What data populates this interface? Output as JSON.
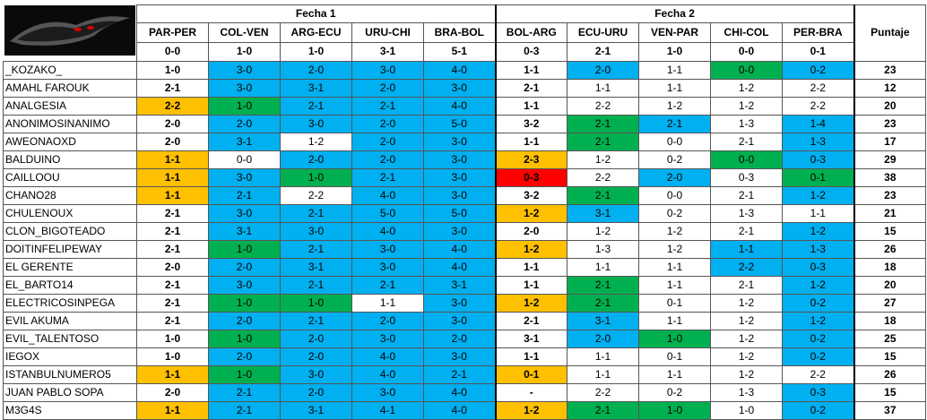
{
  "header": {
    "groups": [
      "Fecha 1",
      "Fecha 2"
    ],
    "score_label": "Puntaje",
    "matches": [
      "PAR-PER",
      "COL-VEN",
      "ARG-ECU",
      "URU-CHI",
      "BRA-BOL",
      "BOL-ARG",
      "ECU-URU",
      "VEN-PAR",
      "CHI-COL",
      "PER-BRA"
    ],
    "results": [
      "0-0",
      "1-0",
      "1-0",
      "3-1",
      "5-1",
      "0-3",
      "2-1",
      "1-0",
      "0-0",
      "0-1"
    ]
  },
  "palette": {
    "w": "#ffffff",
    "b": "#00b0f0",
    "g": "#00b050",
    "o": "#ffc000",
    "r": "#ff0000"
  },
  "rows": [
    {
      "name": "_KOZAKO_",
      "picks": [
        "1-0",
        "3-0",
        "2-0",
        "3-0",
        "4-0",
        "1-1",
        "2-0",
        "1-1",
        "0-0",
        "0-2"
      ],
      "fills": [
        "w",
        "b",
        "b",
        "b",
        "b",
        "w",
        "b",
        "w",
        "g",
        "b"
      ],
      "score": 23
    },
    {
      "name": "AMAHL FAROUK",
      "picks": [
        "2-1",
        "3-0",
        "3-1",
        "2-0",
        "3-0",
        "2-1",
        "1-1",
        "1-1",
        "1-2",
        "2-2"
      ],
      "fills": [
        "w",
        "b",
        "b",
        "b",
        "b",
        "w",
        "w",
        "w",
        "w",
        "w"
      ],
      "score": 12
    },
    {
      "name": "ANALGESIA",
      "picks": [
        "2-2",
        "1-0",
        "2-1",
        "2-1",
        "4-0",
        "1-1",
        "2-2",
        "1-2",
        "1-2",
        "2-2"
      ],
      "fills": [
        "o",
        "g",
        "b",
        "b",
        "b",
        "w",
        "w",
        "w",
        "w",
        "w"
      ],
      "score": 20
    },
    {
      "name": "ANONIMOSINANIMO",
      "picks": [
        "2-0",
        "2-0",
        "3-0",
        "2-0",
        "5-0",
        "3-2",
        "2-1",
        "2-1",
        "1-3",
        "1-4"
      ],
      "fills": [
        "w",
        "b",
        "b",
        "b",
        "b",
        "w",
        "g",
        "b",
        "w",
        "b"
      ],
      "score": 23
    },
    {
      "name": "AWEONAOXD",
      "picks": [
        "2-0",
        "3-1",
        "1-2",
        "2-0",
        "3-0",
        "1-1",
        "2-1",
        "0-0",
        "2-1",
        "1-3"
      ],
      "fills": [
        "w",
        "b",
        "w",
        "b",
        "b",
        "w",
        "g",
        "w",
        "w",
        "b"
      ],
      "score": 17
    },
    {
      "name": "BALDUINO",
      "picks": [
        "1-1",
        "0-0",
        "2-0",
        "2-0",
        "3-0",
        "2-3",
        "1-2",
        "0-2",
        "0-0",
        "0-3"
      ],
      "fills": [
        "o",
        "w",
        "b",
        "b",
        "b",
        "o",
        "w",
        "w",
        "g",
        "b"
      ],
      "score": 29
    },
    {
      "name": "CAILLOOU",
      "picks": [
        "1-1",
        "3-0",
        "1-0",
        "2-1",
        "3-0",
        "0-3",
        "2-2",
        "2-0",
        "0-3",
        "0-1"
      ],
      "fills": [
        "o",
        "b",
        "g",
        "b",
        "b",
        "r",
        "w",
        "b",
        "w",
        "g"
      ],
      "score": 38
    },
    {
      "name": "CHANO28",
      "picks": [
        "1-1",
        "2-1",
        "2-2",
        "4-0",
        "3-0",
        "3-2",
        "2-1",
        "0-0",
        "2-1",
        "1-2"
      ],
      "fills": [
        "o",
        "b",
        "w",
        "b",
        "b",
        "w",
        "g",
        "w",
        "w",
        "b"
      ],
      "score": 23
    },
    {
      "name": "CHULENOUX",
      "picks": [
        "2-1",
        "3-0",
        "2-1",
        "5-0",
        "5-0",
        "1-2",
        "3-1",
        "0-2",
        "1-3",
        "1-1"
      ],
      "fills": [
        "w",
        "b",
        "b",
        "b",
        "b",
        "o",
        "b",
        "w",
        "w",
        "w"
      ],
      "score": 21
    },
    {
      "name": "CLON_BIGOTEADO",
      "picks": [
        "2-1",
        "3-1",
        "3-0",
        "4-0",
        "3-0",
        "2-0",
        "1-2",
        "1-2",
        "2-1",
        "1-2"
      ],
      "fills": [
        "w",
        "b",
        "b",
        "b",
        "b",
        "w",
        "w",
        "w",
        "w",
        "b"
      ],
      "score": 15
    },
    {
      "name": "DOITINFELIPEWAY",
      "picks": [
        "2-1",
        "1-0",
        "2-1",
        "3-0",
        "4-0",
        "1-2",
        "1-3",
        "1-2",
        "1-1",
        "1-3"
      ],
      "fills": [
        "w",
        "g",
        "b",
        "b",
        "b",
        "o",
        "w",
        "w",
        "b",
        "b"
      ],
      "score": 26
    },
    {
      "name": "EL GERENTE",
      "picks": [
        "2-0",
        "2-0",
        "3-1",
        "3-0",
        "4-0",
        "1-1",
        "1-1",
        "1-1",
        "2-2",
        "0-3"
      ],
      "fills": [
        "w",
        "b",
        "b",
        "b",
        "b",
        "w",
        "w",
        "w",
        "b",
        "b"
      ],
      "score": 18
    },
    {
      "name": "EL_BARTO14",
      "picks": [
        "2-1",
        "3-0",
        "2-1",
        "2-1",
        "3-1",
        "1-1",
        "2-1",
        "1-1",
        "2-1",
        "1-2"
      ],
      "fills": [
        "w",
        "b",
        "b",
        "b",
        "b",
        "w",
        "g",
        "w",
        "w",
        "b"
      ],
      "score": 20
    },
    {
      "name": "ELECTRICOSINPEGA",
      "picks": [
        "2-1",
        "1-0",
        "1-0",
        "1-1",
        "3-0",
        "1-2",
        "2-1",
        "0-1",
        "1-2",
        "0-2"
      ],
      "fills": [
        "w",
        "g",
        "g",
        "w",
        "b",
        "o",
        "g",
        "w",
        "w",
        "b"
      ],
      "score": 27
    },
    {
      "name": "EVIL AKUMA",
      "picks": [
        "2-1",
        "2-0",
        "2-1",
        "2-0",
        "3-0",
        "2-1",
        "3-1",
        "1-1",
        "1-2",
        "1-2"
      ],
      "fills": [
        "w",
        "b",
        "b",
        "b",
        "b",
        "w",
        "b",
        "w",
        "w",
        "b"
      ],
      "score": 18
    },
    {
      "name": "EVIL_TALENTOSO",
      "picks": [
        "1-0",
        "1-0",
        "2-0",
        "3-0",
        "2-0",
        "3-1",
        "2-0",
        "1-0",
        "1-2",
        "0-2"
      ],
      "fills": [
        "w",
        "g",
        "b",
        "b",
        "b",
        "w",
        "b",
        "g",
        "w",
        "b"
      ],
      "score": 25
    },
    {
      "name": "IEGOX",
      "picks": [
        "1-0",
        "2-0",
        "2-0",
        "4-0",
        "3-0",
        "1-1",
        "1-1",
        "0-1",
        "1-2",
        "0-2"
      ],
      "fills": [
        "w",
        "b",
        "b",
        "b",
        "b",
        "w",
        "w",
        "w",
        "w",
        "b"
      ],
      "score": 15
    },
    {
      "name": "ISTANBULNUMERO5",
      "picks": [
        "1-1",
        "1-0",
        "3-0",
        "4-0",
        "2-1",
        "0-1",
        "1-1",
        "1-1",
        "1-2",
        "2-2"
      ],
      "fills": [
        "o",
        "g",
        "b",
        "b",
        "b",
        "o",
        "w",
        "w",
        "w",
        "w"
      ],
      "score": 26
    },
    {
      "name": "JUAN PABLO SOPA",
      "picks": [
        "2-0",
        "2-1",
        "2-0",
        "3-0",
        "4-0",
        "-",
        "2-2",
        "0-2",
        "1-3",
        "0-3"
      ],
      "fills": [
        "w",
        "b",
        "b",
        "b",
        "b",
        "w",
        "w",
        "w",
        "w",
        "b"
      ],
      "score": 15
    },
    {
      "name": "M3G4S",
      "picks": [
        "1-1",
        "2-1",
        "3-1",
        "4-1",
        "4-0",
        "1-2",
        "2-1",
        "1-0",
        "1-0",
        "0-2"
      ],
      "fills": [
        "o",
        "b",
        "b",
        "b",
        "b",
        "o",
        "g",
        "g",
        "w",
        "b"
      ],
      "score": 37
    }
  ]
}
